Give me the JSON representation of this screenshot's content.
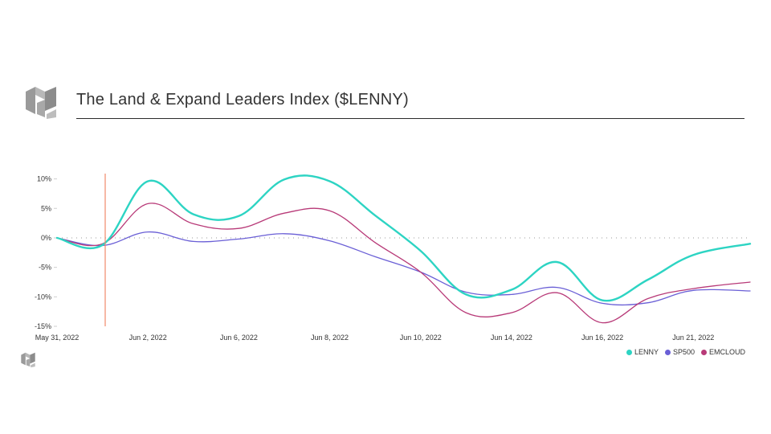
{
  "header": {
    "title": "The Land & Expand Leaders Index ($LENNY)"
  },
  "colors": {
    "LENNY": "#2dd4c3",
    "SP500": "#6a5fd6",
    "EMCLOUD": "#b83a78",
    "marker": "#f08a6a",
    "logo": "#9a9a9a"
  },
  "chart_data": {
    "type": "line",
    "title": "The Land & Expand Leaders Index ($LENNY)",
    "xlabel": "",
    "ylabel": "",
    "ylim": [
      -15,
      10.9
    ],
    "yticks": [
      {
        "value": 10,
        "label": "10%"
      },
      {
        "value": 5,
        "label": "5%"
      },
      {
        "value": 0,
        "label": "0%"
      },
      {
        "value": -5,
        "label": "-5%"
      },
      {
        "value": -10,
        "label": "-10%"
      },
      {
        "value": -15,
        "label": "-15%"
      }
    ],
    "xrange": [
      0,
      15.25
    ],
    "xticks": [
      {
        "x": 0,
        "label": "May 31, 2022"
      },
      {
        "x": 2,
        "label": "Jun 2, 2022"
      },
      {
        "x": 4,
        "label": "Jun 6, 2022"
      },
      {
        "x": 6,
        "label": "Jun 8, 2022"
      },
      {
        "x": 8,
        "label": "Jun 10, 2022"
      },
      {
        "x": 10,
        "label": "Jun 14, 2022"
      },
      {
        "x": 12,
        "label": "Jun 16, 2022"
      },
      {
        "x": 14,
        "label": "Jun 21, 2022"
      }
    ],
    "marker_x": 1.06,
    "series": [
      {
        "name": "LENNY",
        "x": [
          0,
          1,
          2,
          3,
          4,
          5,
          6,
          7,
          8,
          9,
          10,
          11,
          12,
          13,
          14,
          15.25
        ],
        "values": [
          0,
          -1.2,
          9.6,
          4.0,
          3.7,
          9.9,
          9.6,
          3.8,
          -2.2,
          -9.6,
          -8.8,
          -4.1,
          -10.6,
          -7.1,
          -2.9,
          -1.0
        ]
      },
      {
        "name": "SP500",
        "x": [
          0,
          1,
          2,
          3,
          4,
          5,
          6,
          7,
          8,
          9,
          10,
          11,
          12,
          13,
          14,
          15.25
        ],
        "values": [
          0,
          -1.3,
          1.0,
          -0.6,
          -0.2,
          0.7,
          -0.5,
          -3.2,
          -5.8,
          -9.2,
          -9.6,
          -8.4,
          -11.1,
          -11.0,
          -8.9,
          -9.0
        ]
      },
      {
        "name": "EMCLOUD",
        "x": [
          0,
          1,
          2,
          3,
          4,
          5,
          6,
          7,
          8,
          9,
          10,
          11,
          12,
          13,
          14,
          15.25
        ],
        "values": [
          0,
          -1.0,
          5.8,
          2.4,
          1.6,
          4.2,
          4.6,
          -0.8,
          -5.8,
          -12.7,
          -12.7,
          -9.3,
          -14.4,
          -10.3,
          -8.6,
          -7.5
        ]
      }
    ],
    "legend": [
      "LENNY",
      "SP500",
      "EMCLOUD"
    ]
  }
}
